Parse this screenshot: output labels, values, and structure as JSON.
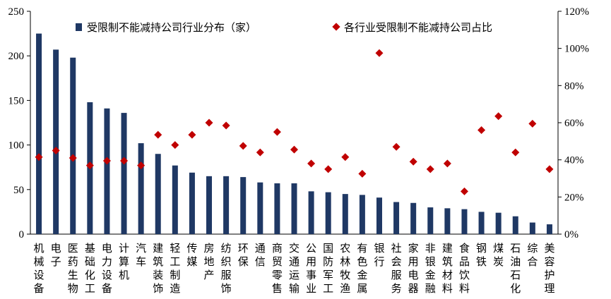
{
  "chart_data": {
    "type": "bar",
    "categories": [
      "机械设备",
      "电子",
      "医药生物",
      "基础化工",
      "电力设备",
      "计算机",
      "汽车",
      "建筑装饰",
      "轻工制造",
      "传媒",
      "房地产",
      "纺织服饰",
      "环保",
      "通信",
      "商贸零售",
      "交通运输",
      "公用事业",
      "国防军工",
      "农林牧渔",
      "有色金属",
      "银行",
      "社会服务",
      "家用电器",
      "非银金融",
      "建筑材料",
      "食品饮料",
      "钢铁",
      "煤炭",
      "石油石化",
      "综合",
      "美容护理"
    ],
    "series": [
      {
        "name": "受限制不能减持公司行业分布（家）",
        "type": "bar",
        "axis": "left",
        "color": "#1f3864",
        "values": [
          225,
          207,
          198,
          148,
          141,
          136,
          102,
          90,
          77,
          69,
          65,
          65,
          64,
          58,
          57,
          57,
          48,
          47,
          45,
          44,
          41,
          36,
          35,
          30,
          29,
          28,
          25,
          24,
          20,
          13,
          11
        ]
      },
      {
        "name": "各行业受限制不能减持公司占比",
        "type": "scatter",
        "axis": "right",
        "color": "#c00000",
        "values": [
          41.5,
          45,
          41,
          37,
          39.5,
          39.5,
          37,
          53.5,
          48,
          53.5,
          60,
          58.5,
          47.5,
          44,
          55,
          45.5,
          38,
          35,
          41.5,
          32.5,
          97.5,
          47,
          39,
          35,
          38,
          23,
          56,
          63.5,
          44,
          59.5,
          35
        ]
      }
    ],
    "y_left": {
      "min": 0,
      "max": 250,
      "ticks": [
        "0",
        "50",
        "100",
        "150",
        "200",
        "250"
      ]
    },
    "y_right": {
      "min": 0,
      "max": 120,
      "ticks": [
        "0%",
        "20%",
        "40%",
        "60%",
        "80%",
        "100%",
        "120%"
      ]
    },
    "grid": false,
    "legend_position": "top"
  }
}
